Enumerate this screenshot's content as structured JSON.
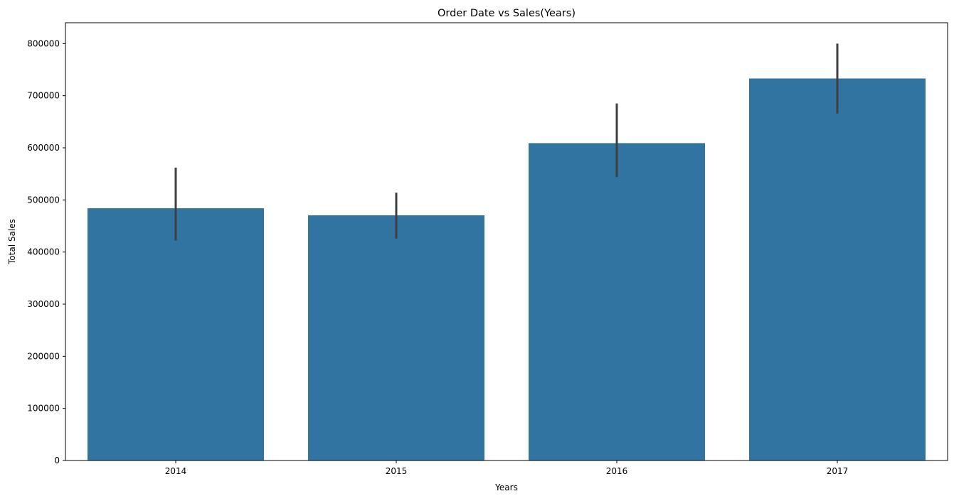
{
  "chart_data": {
    "type": "bar",
    "title": "Order Date vs Sales(Years)",
    "xlabel": "Years",
    "ylabel": "Total Sales",
    "categories": [
      "2014",
      "2015",
      "2016",
      "2017"
    ],
    "values": [
      484000,
      470500,
      609000,
      733000
    ],
    "error_low": [
      422000,
      426000,
      544000,
      666000
    ],
    "error_high": [
      562000,
      514000,
      685000,
      800000
    ],
    "ylim": [
      0,
      840000
    ],
    "yticks": [
      0,
      100000,
      200000,
      300000,
      400000,
      500000,
      600000,
      700000,
      800000
    ],
    "ytick_labels": [
      "0",
      "100000",
      "200000",
      "300000",
      "400000",
      "500000",
      "600000",
      "700000",
      "800000"
    ],
    "grid": false,
    "legend": "none",
    "colors": {
      "bar": "#3274a1",
      "error_bar": "#3f3f3f",
      "axis": "#000000"
    }
  }
}
